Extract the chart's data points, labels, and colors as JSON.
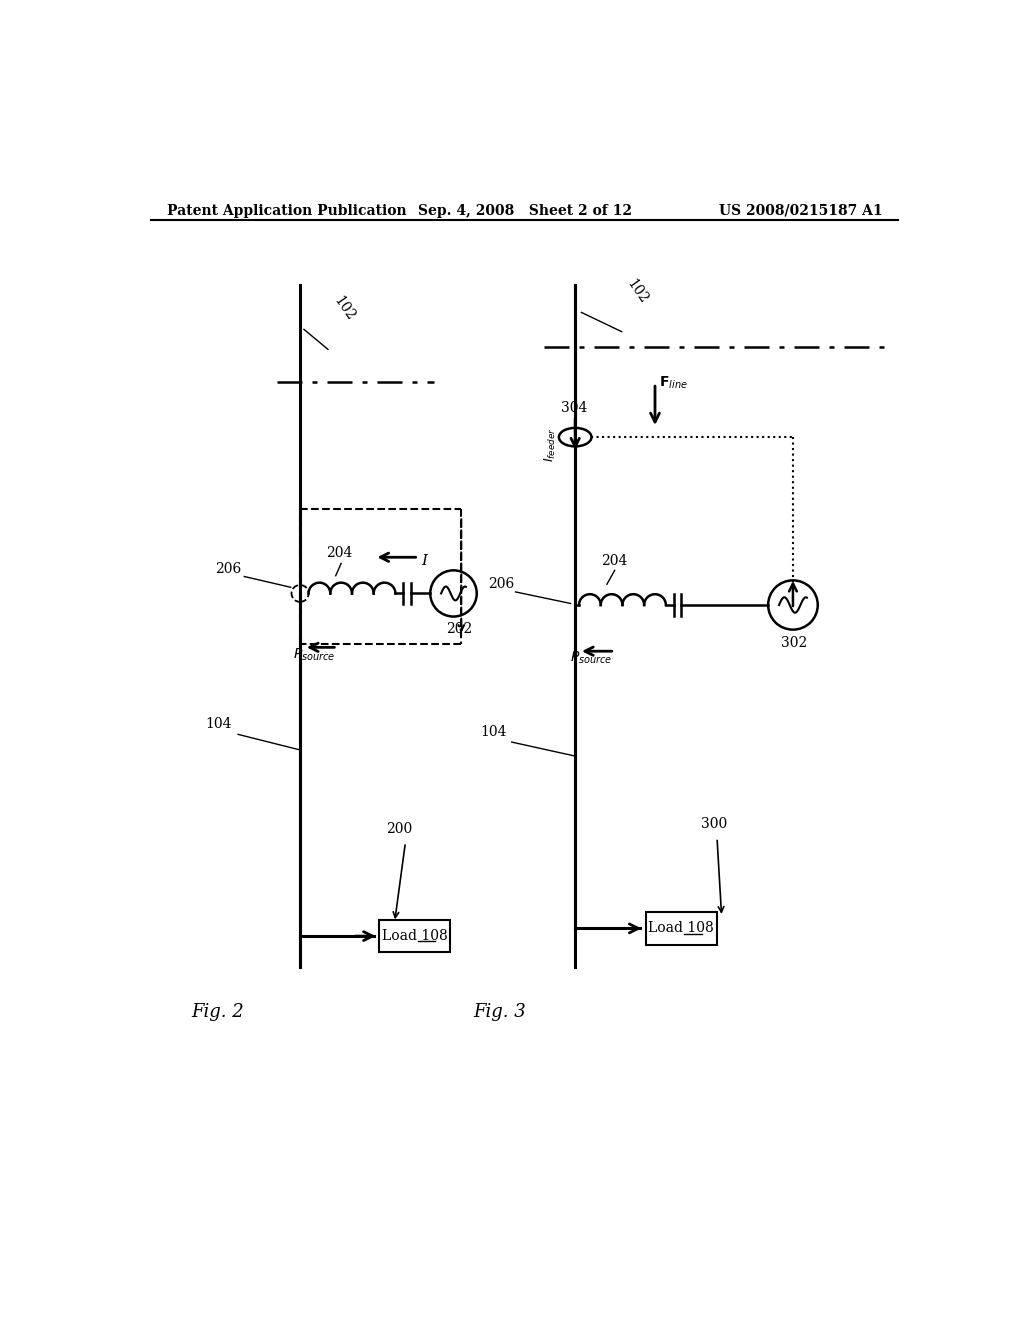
{
  "bg_color": "#ffffff",
  "header_left": "Patent Application Publication",
  "header_center": "Sep. 4, 2008   Sheet 2 of 12",
  "header_right": "US 2008/0215187 A1",
  "fig2_label": "Fig. 2",
  "fig3_label": "Fig. 3"
}
